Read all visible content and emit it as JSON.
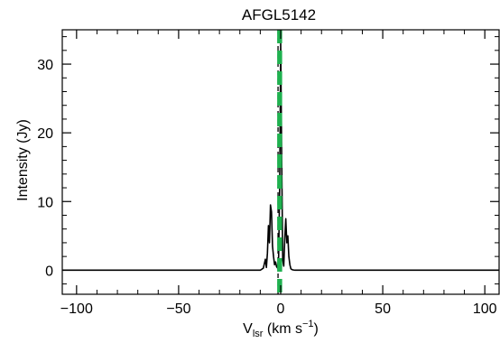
{
  "chart_data": {
    "type": "line",
    "title": "AFGL5142",
    "xlabel": {
      "base": "V",
      "sub": "lsr",
      "rest": " (km s",
      "sup": "−1",
      "close": ")"
    },
    "ylabel": "Intensity (Jy)",
    "xlim": [
      -107,
      107
    ],
    "ylim": [
      -3.5,
      35
    ],
    "xticks": [
      -100,
      -50,
      0,
      50,
      100
    ],
    "xtick_labels": [
      "−100",
      "−50",
      "0",
      "50",
      "100"
    ],
    "yticks": [
      0,
      10,
      20,
      30
    ],
    "ytick_labels": [
      "0",
      "10",
      "20",
      "30"
    ],
    "grid": false,
    "series": [
      {
        "style": "solid",
        "color": "#000000",
        "x": [
          -107,
          -20,
          -10,
          -8.5,
          -7.5,
          -7,
          -6.5,
          -6,
          -5.5,
          -5,
          -4.5,
          -4,
          -3.5,
          -3,
          -2.5,
          -2,
          -1.5,
          -1,
          -0.5,
          0,
          0.5,
          1,
          1.5,
          2,
          2.5,
          3,
          3.5,
          4,
          4.5,
          5,
          5.5,
          6,
          7,
          9,
          20,
          107
        ],
        "y": [
          0,
          0,
          0,
          0.3,
          1.6,
          0.4,
          2.5,
          6.5,
          4.0,
          9.5,
          8.5,
          3.5,
          2.0,
          0.8,
          1.2,
          0.5,
          0.3,
          2.0,
          12.0,
          33.0,
          16.0,
          1.5,
          0.6,
          4.5,
          7.5,
          4.0,
          5.0,
          2.0,
          0.8,
          0.2,
          0.1,
          0.05,
          0,
          0,
          0,
          0
        ]
      }
    ],
    "vlines": [
      {
        "x": -1.3,
        "style": "dashed",
        "color": "#000000"
      },
      {
        "x": -0.5,
        "style": "dashed",
        "color": "#1fb14f"
      }
    ]
  }
}
